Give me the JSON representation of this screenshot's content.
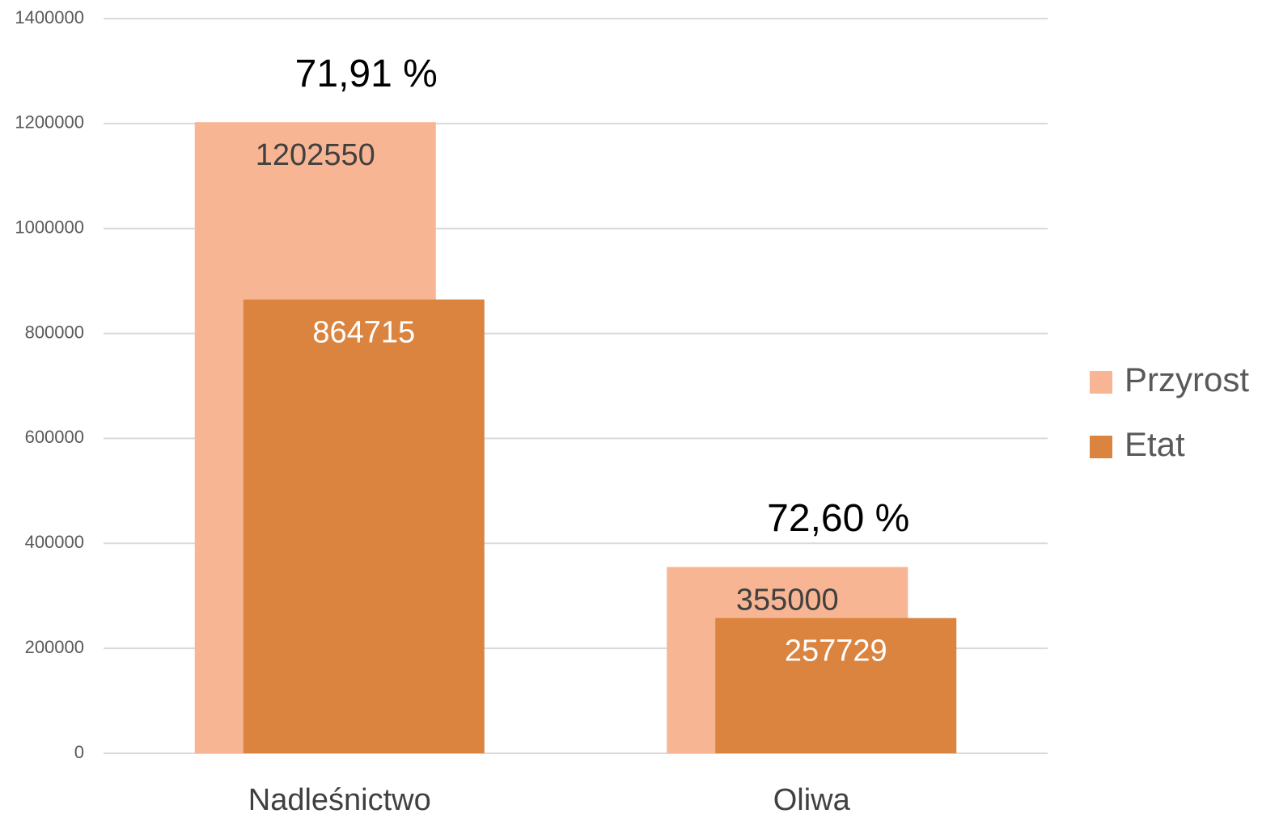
{
  "chart_data": {
    "type": "bar",
    "layout": "overlap",
    "categories": [
      "Nadleśnictwo",
      "Oliwa"
    ],
    "series": [
      {
        "name": "Przyrost",
        "color": "#f8b593",
        "values": [
          1202550,
          355000
        ]
      },
      {
        "name": "Etat",
        "color": "#db843f",
        "values": [
          864715,
          257729
        ]
      }
    ],
    "annotations": [
      "71,91 %",
      "72,60 %"
    ],
    "ylim": [
      0,
      1400000
    ],
    "yticks": [
      0,
      200000,
      400000,
      600000,
      800000,
      1000000,
      1200000,
      1400000
    ],
    "grid": true,
    "legend": "right"
  }
}
